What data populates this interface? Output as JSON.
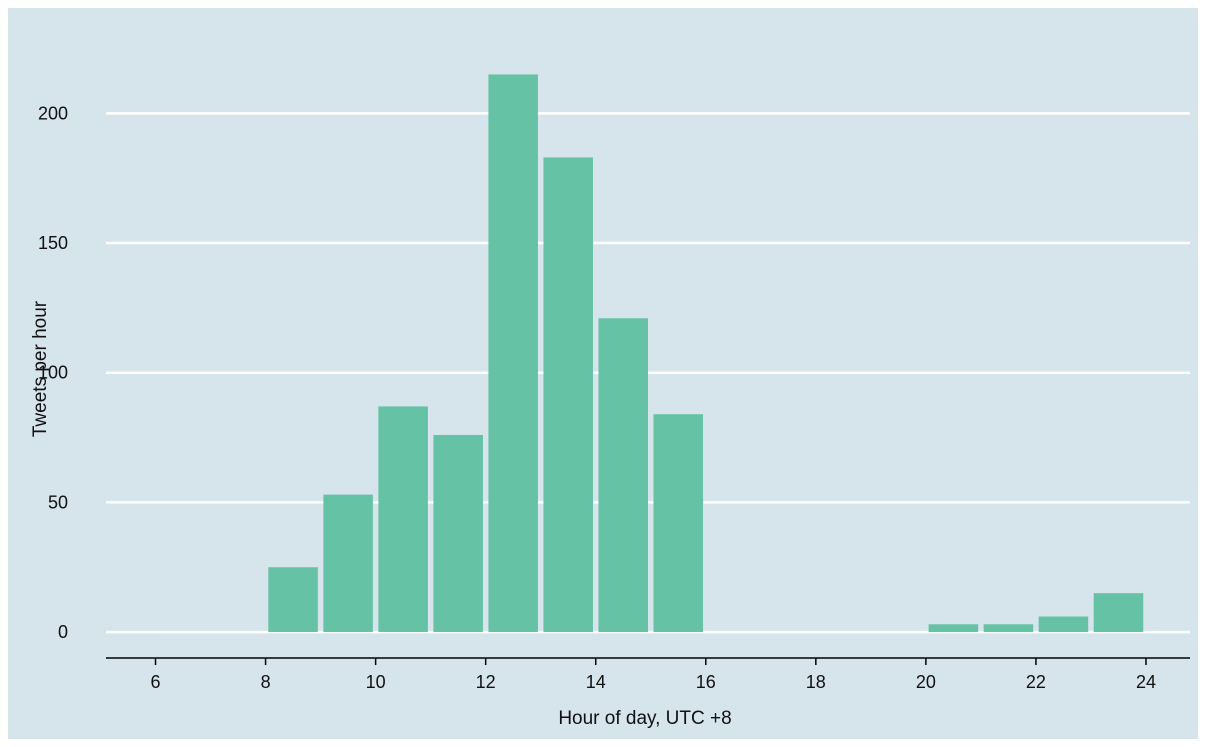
{
  "chart_data": {
    "type": "bar",
    "title": "",
    "xlabel": "Hour of day, UTC +8",
    "ylabel": "Tweets per hour",
    "x": [
      6,
      7,
      8,
      9,
      10,
      11,
      12,
      13,
      14,
      15,
      16,
      17,
      18,
      19,
      20,
      21,
      22,
      23
    ],
    "values": [
      0,
      0,
      25,
      53,
      87,
      76,
      215,
      183,
      121,
      84,
      0,
      0,
      0,
      0,
      3,
      3,
      6,
      15
    ],
    "xlim": [
      5.1,
      24.8
    ],
    "ylim": [
      -10,
      236
    ],
    "xticks": [
      6,
      8,
      10,
      12,
      14,
      16,
      18,
      20,
      22,
      24
    ],
    "yticks": [
      0,
      50,
      100,
      150,
      200
    ],
    "xtick_labels": [
      "6",
      "8",
      "10",
      "12",
      "14",
      "16",
      "18",
      "20",
      "22",
      "24"
    ],
    "ytick_labels": [
      "0",
      "50",
      "100",
      "150",
      "200"
    ],
    "grid": "horizontal",
    "legend": "none",
    "colors": {
      "background": "#d6e4ec",
      "bar": "#66c2a5",
      "gridline": "#ffffff",
      "axis": "#000000"
    }
  }
}
